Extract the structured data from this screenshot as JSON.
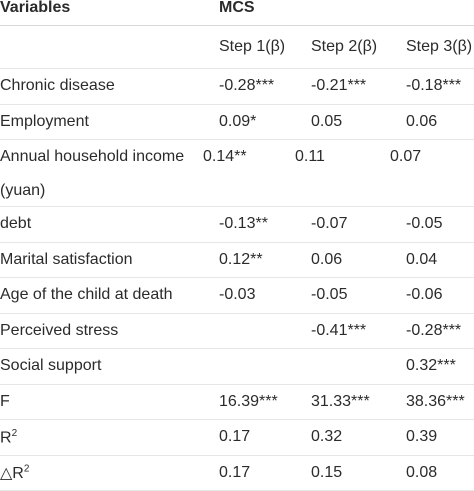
{
  "header": {
    "variables": "Variables",
    "group": "MCS"
  },
  "steps": [
    "Step 1(β)",
    "Step 2(β)",
    "Step 3(β)"
  ],
  "rows": [
    {
      "label": "Chronic disease",
      "s1": "-0.28***",
      "s2": "-0.21***",
      "s3": "-0.18***"
    },
    {
      "label": "Employment",
      "s1": "0.09*",
      "s2": "0.05",
      "s3": "0.06"
    },
    {
      "label": "Annual household income (yuan)",
      "s1": "0.14**",
      "s2": "0.11",
      "s3": "0.07"
    },
    {
      "label": "debt",
      "s1": "-0.13**",
      "s2": "-0.07",
      "s3": "-0.05"
    },
    {
      "label": "Marital satisfaction",
      "s1": "0.12**",
      "s2": "0.06",
      "s3": "0.04"
    },
    {
      "label": "Age of the child at death",
      "s1": "-0.03",
      "s2": "-0.05",
      "s3": "-0.06"
    },
    {
      "label": "Perceived stress",
      "s1": "",
      "s2": "-0.41***",
      "s3": "-0.28***"
    },
    {
      "label": "Social support",
      "s1": "",
      "s2": "",
      "s3": "0.32***"
    },
    {
      "label": "F",
      "s1": "16.39***",
      "s2": "31.33***",
      "s3": "38.36***"
    },
    {
      "label": "R",
      "s1": "0.17",
      "s2": "0.32",
      "s3": "0.39"
    },
    {
      "label": "△R",
      "s1": "0.17",
      "s2": "0.15",
      "s3": "0.08"
    }
  ],
  "superscript": "2"
}
